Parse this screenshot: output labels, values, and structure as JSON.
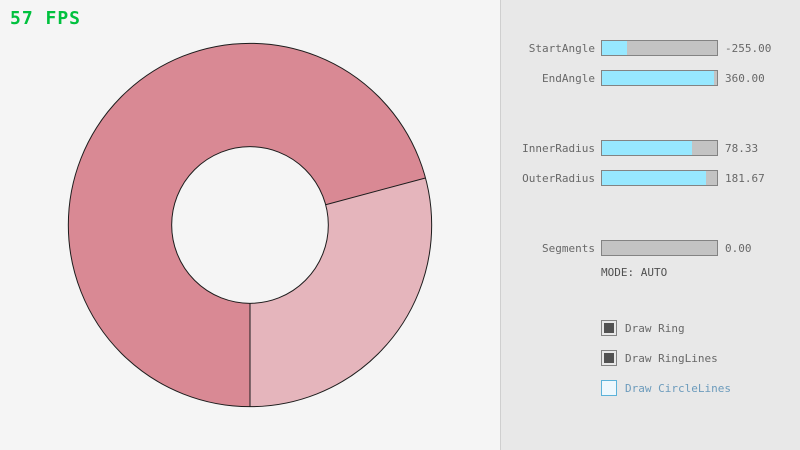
{
  "fps": "57 FPS",
  "panel": {
    "sliders": [
      {
        "label": "StartAngle",
        "value": "-255.00",
        "fill_pct": 21.7
      },
      {
        "label": "EndAngle",
        "value": "360.00",
        "fill_pct": 97
      },
      {
        "label": "InnerRadius",
        "value": "78.33",
        "fill_pct": 78.3
      },
      {
        "label": "OuterRadius",
        "value": "181.67",
        "fill_pct": 90.8
      },
      {
        "label": "Segments",
        "value": "0.00",
        "fill_pct": 0
      }
    ],
    "mode_text": "MODE: AUTO",
    "checkboxes": [
      {
        "label": "Draw Ring",
        "state": "checked"
      },
      {
        "label": "Draw RingLines",
        "state": "checked"
      },
      {
        "label": "Draw CircleLines",
        "state": "focused"
      }
    ]
  },
  "ring": {
    "start_angle_deg": -255.0,
    "end_angle_deg": 360.0,
    "inner_radius": 78.33,
    "outer_radius": 181.67,
    "segments": 0,
    "segments_mode": "AUTO",
    "single_pass_color": "#e5b5bc",
    "double_pass_color": "#d98994",
    "line_color": "#1c1c1c"
  },
  "colors": {
    "fps_green": "#00c13e",
    "canvas_bg": "#f5f5f5",
    "panel_bg": "#e8e8e8",
    "slider_fill": "#97e8ff",
    "slider_track": "#c3c3c3",
    "slider_border": "#838383",
    "checkbox_check": "#525252",
    "focus_blue": "#5bb2d9",
    "focus_text_blue": "#6c9bbc"
  }
}
